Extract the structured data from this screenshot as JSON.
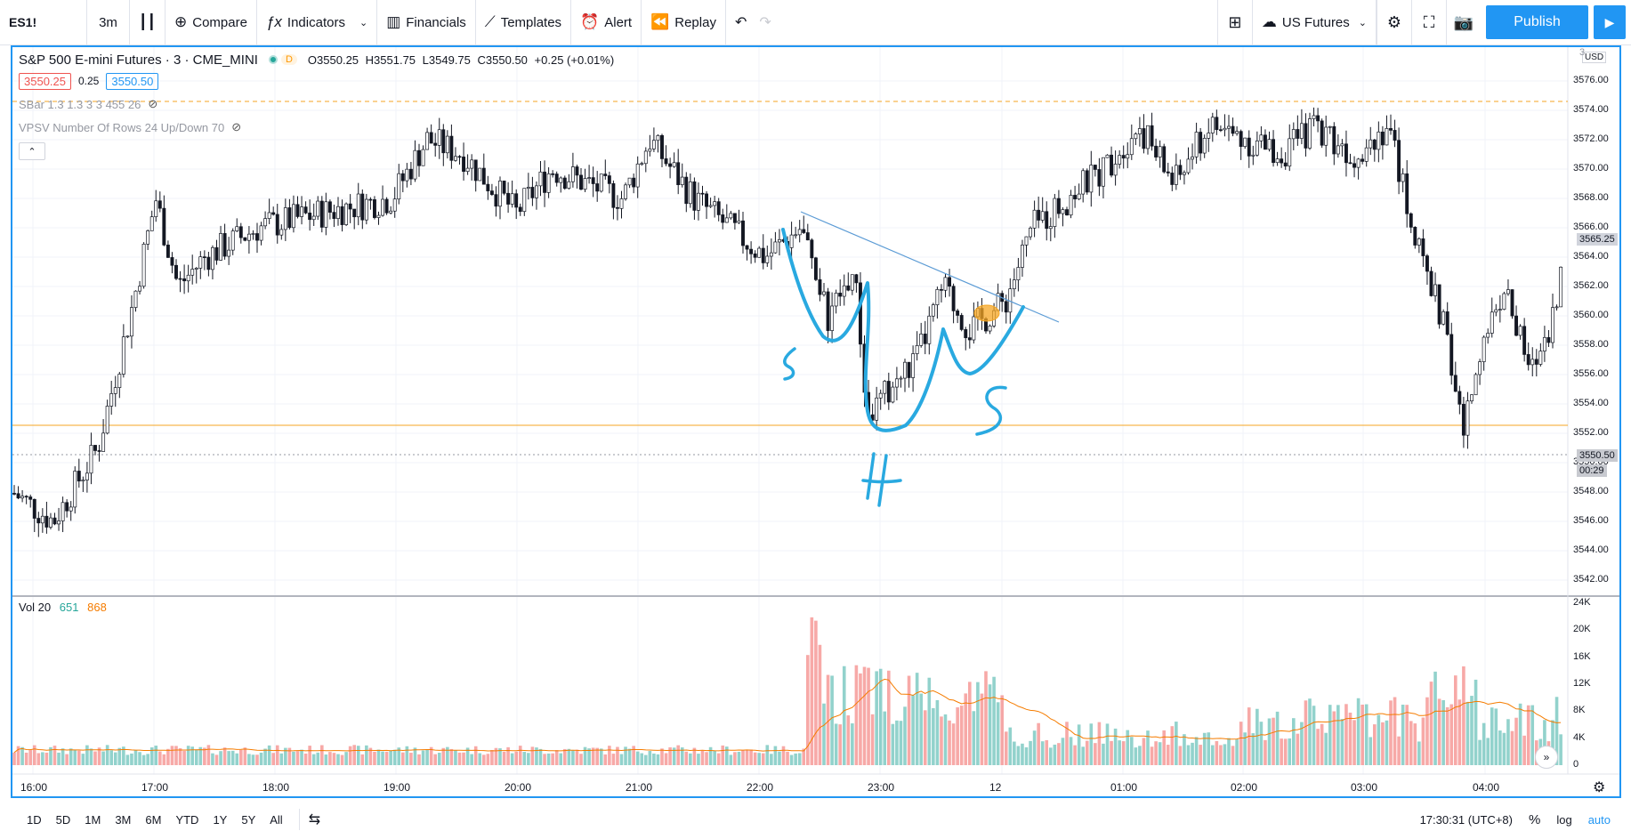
{
  "toolbar": {
    "symbol": "ES1!",
    "interval": "3m",
    "compare": "Compare",
    "indicators": "Indicators",
    "financials": "Financials",
    "templates": "Templates",
    "alert": "Alert",
    "replay": "Replay",
    "watchlist": "US Futures",
    "publish": "Publish"
  },
  "legend": {
    "title": "S&P 500 E-mini Futures · 3 · CME_MINI",
    "badge": "D",
    "open": "O3550.25",
    "high": "H3551.75",
    "low": "L3549.75",
    "close": "C3550.50",
    "change": "+0.25 (+0.01%)",
    "bid": "3550.25",
    "spread": "0.25",
    "ask": "3550.50",
    "indicator1": "SBar 1.3 1.3 3 3 455 26",
    "indicator2": "VPSV Number Of Rows 24 Up/Down 70"
  },
  "volume_legend": {
    "label": "Vol 20",
    "value": "651",
    "ma": "868"
  },
  "price_axis": {
    "currency": "USD",
    "labels": [
      "3576.00",
      "3574.00",
      "3572.00",
      "3570.00",
      "3568.00",
      "3566.00",
      "3564.00",
      "3562.00",
      "3560.00",
      "3558.00",
      "3556.00",
      "3554.00",
      "3552.00",
      "3550.00",
      "3548.00",
      "3546.00",
      "3544.00",
      "3542.00"
    ],
    "current_price": "3550.50",
    "countdown": "00:29",
    "marker_price": "3565.25",
    "top_partial": "3"
  },
  "volume_axis": {
    "labels": [
      "24K",
      "20K",
      "16K",
      "12K",
      "8K",
      "4K",
      "0"
    ]
  },
  "time_axis": {
    "labels": [
      "16:00",
      "17:00",
      "18:00",
      "19:00",
      "20:00",
      "21:00",
      "22:00",
      "23:00",
      "12",
      "01:00",
      "02:00",
      "03:00",
      "04:00"
    ]
  },
  "annotations": {
    "left_shoulder": "S",
    "head": "H",
    "right_shoulder": "S"
  },
  "bottom_bar": {
    "ranges": [
      "1D",
      "5D",
      "1M",
      "3M",
      "6M",
      "YTD",
      "1Y",
      "5Y",
      "All"
    ],
    "clock": "17:30:31 (UTC+8)",
    "percent": "%",
    "log": "log",
    "auto": "auto"
  },
  "colors": {
    "up": "#26a69a",
    "down": "#ef5350",
    "accent": "#2196f3",
    "drawing": "#29a9e0",
    "level": "#f5a623"
  }
}
